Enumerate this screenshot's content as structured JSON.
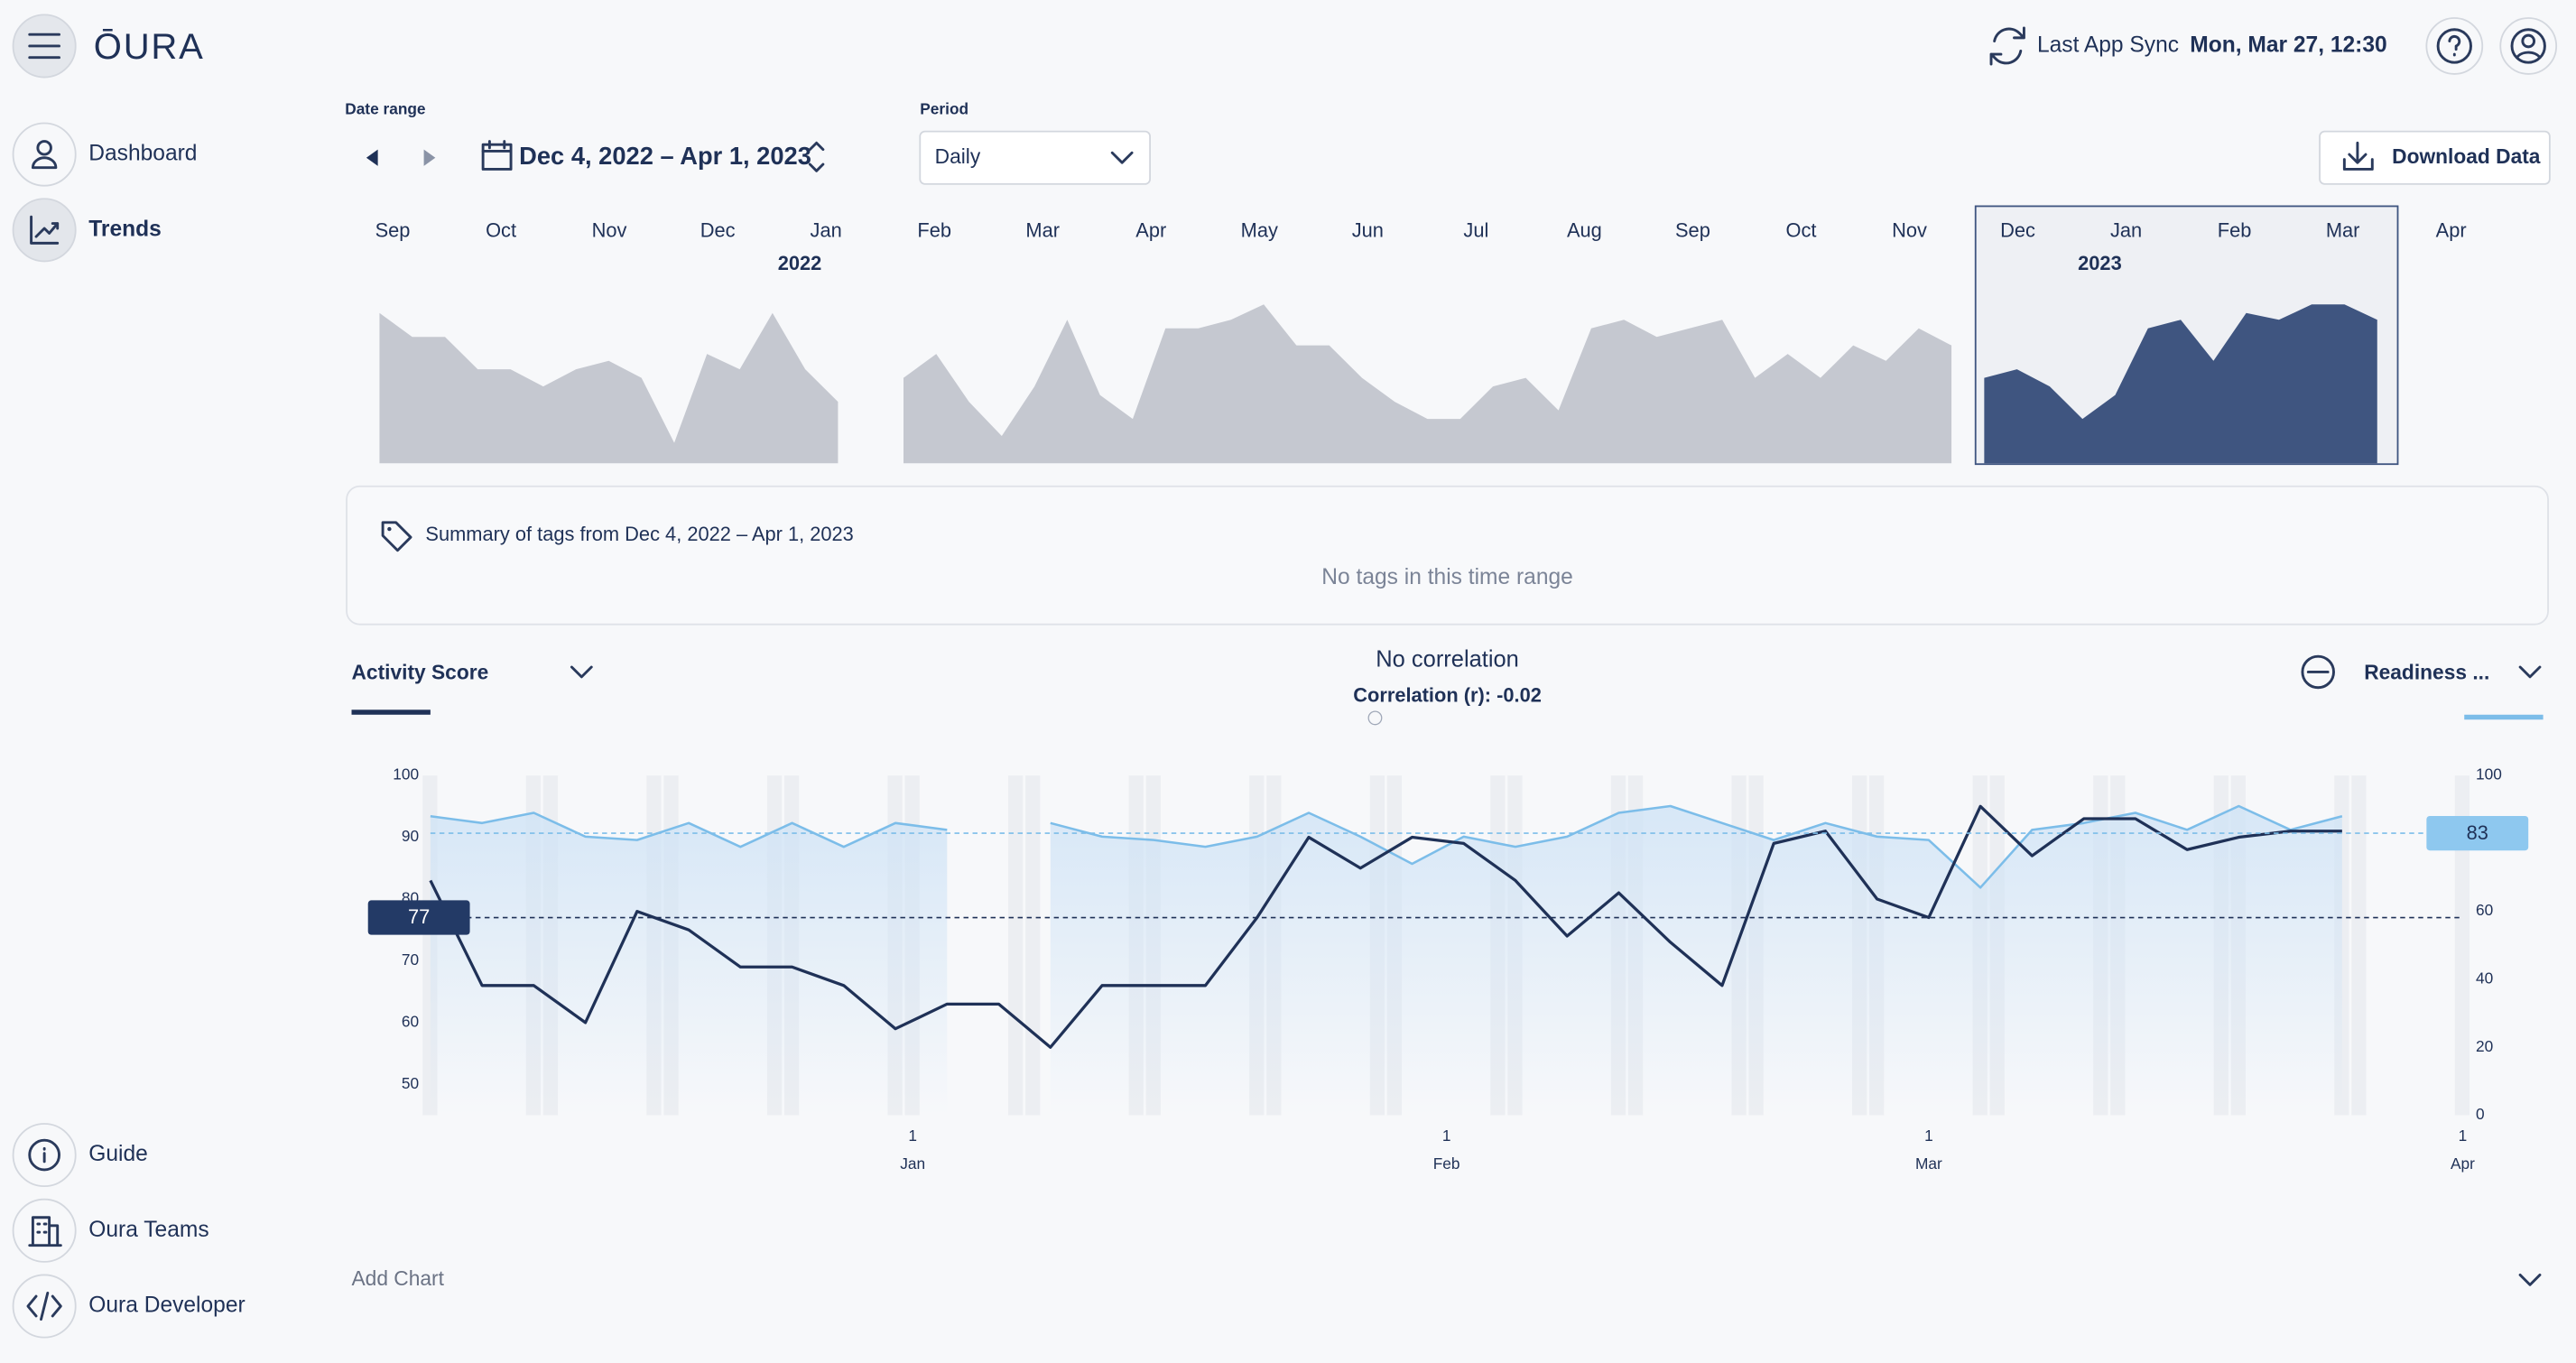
{
  "header": {
    "brand": "ŌURA",
    "sync_label": "Last App Sync",
    "sync_time": "Mon, Mar 27, 12:30"
  },
  "sidebar": {
    "top": [
      "Dashboard",
      "Trends"
    ],
    "bottom": [
      "Guide",
      "Oura Teams",
      "Oura Developer"
    ]
  },
  "controls": {
    "date_range_label": "Date range",
    "date_range": "Dec 4, 2022 – Apr 1, 2023",
    "period_label": "Period",
    "period": "Daily",
    "download": "Download Data"
  },
  "overview": {
    "months": [
      "Sep",
      "Oct",
      "Nov",
      "Dec",
      "Jan",
      "Feb",
      "Mar",
      "Apr",
      "May",
      "Jun",
      "Jul",
      "Aug",
      "Sep",
      "Oct",
      "Nov",
      "Dec",
      "Jan",
      "Feb",
      "Mar",
      "Apr"
    ],
    "years": [
      "2022",
      "2023"
    ],
    "ylim": [
      0,
      100
    ],
    "series": [
      {
        "color": "#c5c8d0",
        "values": [
          88,
          74,
          74,
          55,
          55,
          45,
          55,
          60,
          50,
          12,
          64,
          55,
          88,
          55,
          36,
          null,
          50,
          64,
          36,
          16,
          45,
          84,
          40,
          26,
          79,
          79,
          84,
          93,
          69,
          69,
          50,
          36,
          26,
          26,
          45,
          50,
          31,
          79,
          84,
          74,
          79,
          84,
          50,
          64,
          50,
          69,
          60,
          79,
          69,
          null,
          null,
          null,
          null,
          null,
          null,
          null,
          null,
          null,
          null,
          null,
          null,
          null
        ]
      },
      {
        "color": "#3f5580",
        "values": [
          null,
          null,
          null,
          null,
          null,
          null,
          null,
          null,
          null,
          null,
          null,
          null,
          null,
          null,
          null,
          null,
          null,
          null,
          null,
          null,
          null,
          null,
          null,
          null,
          null,
          null,
          null,
          null,
          null,
          null,
          null,
          null,
          null,
          null,
          null,
          null,
          null,
          null,
          null,
          null,
          null,
          null,
          null,
          null,
          null,
          null,
          null,
          null,
          null,
          50,
          55,
          45,
          26,
          40,
          79,
          84,
          60,
          88,
          84,
          93,
          93,
          84
        ]
      }
    ]
  },
  "tags": {
    "title": "Summary of tags from Dec 4, 2022 – Apr 1, 2023",
    "empty": "No tags in this time range"
  },
  "add_chart": "Add Chart",
  "chart_data": {
    "type": "line",
    "title": "No correlation",
    "subtitle": "Correlation (r): -0.02",
    "x": [
      "2022-12-04",
      "2022-12-07",
      "2022-12-10",
      "2022-12-13",
      "2022-12-16",
      "2022-12-19",
      "2022-12-22",
      "2022-12-25",
      "2022-12-28",
      "2022-12-31",
      "2023-01-03",
      "2023-01-06",
      "2023-01-09",
      "2023-01-12",
      "2023-01-15",
      "2023-01-18",
      "2023-01-21",
      "2023-01-24",
      "2023-01-27",
      "2023-01-30",
      "2023-02-02",
      "2023-02-05",
      "2023-02-08",
      "2023-02-11",
      "2023-02-14",
      "2023-02-17",
      "2023-02-20",
      "2023-02-23",
      "2023-02-26",
      "2023-03-01",
      "2023-03-04",
      "2023-03-07",
      "2023-03-10",
      "2023-03-13",
      "2023-03-16",
      "2023-03-19",
      "2023-03-22",
      "2023-03-25"
    ],
    "xlim": [
      "2022-12-04",
      "2023-04-01"
    ],
    "xticks": [
      {
        "value": "2023-01-01",
        "label": "1"
      },
      {
        "value": "2023-02-01",
        "label": "1"
      },
      {
        "value": "2023-03-01",
        "label": "1"
      },
      {
        "value": "2023-04-01",
        "label": "1"
      }
    ],
    "xtick_months": [
      "Jan",
      "Feb",
      "Mar",
      "Apr"
    ],
    "ylim": [
      45,
      100
    ],
    "yticks": [
      50,
      60,
      70,
      80,
      90,
      100
    ],
    "y2lim": [
      0,
      100
    ],
    "y2ticks": [
      0,
      20,
      40,
      60,
      80,
      100
    ],
    "series": [
      {
        "name": "Activity Score",
        "color": "#1f3157",
        "axis": "y",
        "average": 77,
        "values": [
          83,
          66,
          66,
          60,
          78,
          75,
          69,
          69,
          66,
          59,
          63,
          63,
          56,
          66,
          66,
          66,
          77,
          90,
          85,
          90,
          89,
          83,
          74,
          81,
          73,
          66,
          89,
          91,
          80,
          77,
          95,
          87,
          93,
          93,
          88,
          90,
          91,
          91
        ]
      },
      {
        "name": "Readiness ...",
        "color": "#7cbde9",
        "axis": "y2",
        "average": 83,
        "values": [
          88,
          86,
          89,
          82,
          81,
          86,
          79,
          86,
          79,
          86,
          84,
          null,
          86,
          82,
          81,
          79,
          82,
          89,
          82,
          74,
          82,
          79,
          82,
          89,
          91,
          86,
          81,
          86,
          82,
          81,
          67,
          84,
          86,
          89,
          84,
          91,
          84,
          88
        ]
      }
    ]
  }
}
